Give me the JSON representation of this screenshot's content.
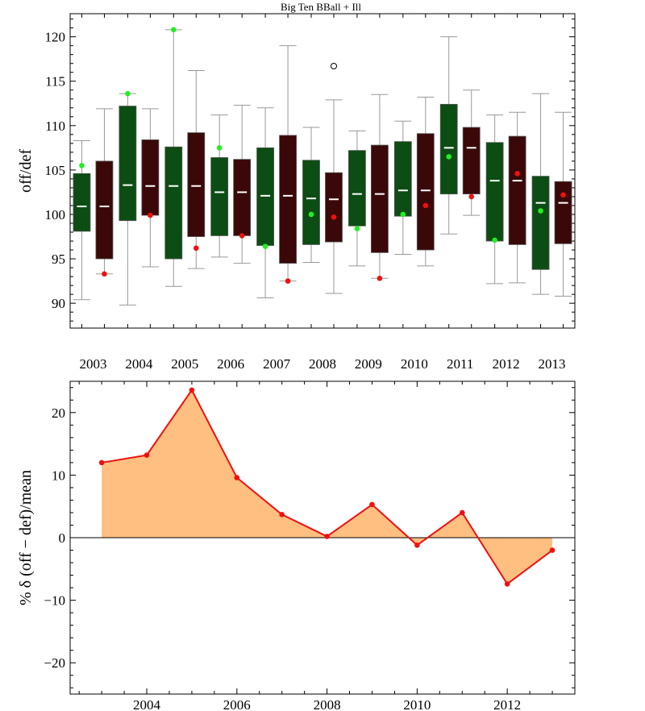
{
  "chart_data": [
    {
      "type": "box",
      "title": "Big Ten BBall + Ill",
      "ylabel": "off/def",
      "categories": [
        "2003",
        "2004",
        "2005",
        "2006",
        "2007",
        "2008",
        "2009",
        "2010",
        "2011",
        "2012",
        "2013"
      ],
      "ylim": [
        87.2,
        122.6
      ],
      "yticks": [
        90,
        95,
        100,
        105,
        110,
        115,
        120
      ],
      "series_colors": {
        "off": "#0b4d12",
        "def": "#3a0808",
        "off_point": "#22ee22",
        "def_point": "#ee1111",
        "whisker": "#999999",
        "median": "#ffffff"
      },
      "series": [
        {
          "name": "off",
          "boxes": [
            {
              "min": 90.4,
              "q1": 98.1,
              "median": 100.9,
              "q3": 104.6,
              "max": 108.3,
              "ill": 105.5
            },
            {
              "min": 89.8,
              "q1": 99.3,
              "median": 103.3,
              "q3": 112.2,
              "max": 113.6,
              "ill": 113.6
            },
            {
              "min": 91.9,
              "q1": 95.0,
              "median": 103.2,
              "q3": 107.6,
              "max": 120.8,
              "ill": 120.8
            },
            {
              "min": 95.2,
              "q1": 97.6,
              "median": 102.5,
              "q3": 106.4,
              "max": 111.2,
              "ill": 107.5
            },
            {
              "min": 90.6,
              "q1": 96.5,
              "median": 102.1,
              "q3": 107.5,
              "max": 112.0,
              "ill": 96.4
            },
            {
              "min": 94.6,
              "q1": 96.6,
              "median": 101.8,
              "q3": 106.1,
              "max": 109.8,
              "ill": 100.0
            },
            {
              "min": 94.2,
              "q1": 98.7,
              "median": 102.3,
              "q3": 107.2,
              "max": 109.4,
              "ill": 98.4
            },
            {
              "min": 95.5,
              "q1": 99.8,
              "median": 102.7,
              "q3": 108.2,
              "max": 110.5,
              "ill": 100.0
            },
            {
              "min": 97.8,
              "q1": 102.3,
              "median": 107.5,
              "q3": 112.4,
              "max": 120.0,
              "ill": 106.5
            },
            {
              "min": 92.2,
              "q1": 97.0,
              "median": 103.8,
              "q3": 108.1,
              "max": 111.2,
              "ill": 97.1
            },
            {
              "min": 91.0,
              "q1": 93.8,
              "median": 101.3,
              "q3": 104.3,
              "max": 113.6,
              "ill": 100.4
            }
          ]
        },
        {
          "name": "def",
          "boxes": [
            {
              "min": 93.3,
              "q1": 95.0,
              "median": 100.9,
              "q3": 106.0,
              "max": 111.9,
              "ill": 93.3
            },
            {
              "min": 94.1,
              "q1": 99.9,
              "median": 103.2,
              "q3": 108.4,
              "max": 111.9,
              "ill": 99.9
            },
            {
              "min": 93.9,
              "q1": 97.5,
              "median": 103.2,
              "q3": 109.2,
              "max": 116.2,
              "ill": 96.2
            },
            {
              "min": 94.5,
              "q1": 97.6,
              "median": 102.5,
              "q3": 106.2,
              "max": 112.3,
              "ill": 97.6
            },
            {
              "min": 92.5,
              "q1": 94.5,
              "median": 102.1,
              "q3": 108.9,
              "max": 119.0,
              "ill": 92.5
            },
            {
              "min": 91.1,
              "q1": 96.9,
              "median": 101.7,
              "q3": 104.7,
              "max": 112.9,
              "ill": 99.7,
              "outlier": 116.7
            },
            {
              "min": 92.8,
              "q1": 95.7,
              "median": 102.3,
              "q3": 107.8,
              "max": 113.5,
              "ill": 92.8
            },
            {
              "min": 94.2,
              "q1": 96.0,
              "median": 102.7,
              "q3": 109.1,
              "max": 113.2,
              "ill": 101.0
            },
            {
              "min": 99.9,
              "q1": 102.3,
              "median": 107.5,
              "q3": 109.8,
              "max": 114.0,
              "ill": 102.0
            },
            {
              "min": 92.3,
              "q1": 96.6,
              "median": 103.8,
              "q3": 108.8,
              "max": 111.5,
              "ill": 104.6
            },
            {
              "min": 90.8,
              "q1": 96.7,
              "median": 101.3,
              "q3": 103.7,
              "max": 111.5,
              "ill": 102.2
            }
          ]
        }
      ]
    },
    {
      "type": "area",
      "title": "",
      "xlabel": "",
      "ylabel": "% δ (off − def)/mean",
      "xlim": [
        2002.3,
        2013.5
      ],
      "ylim": [
        -25,
        25
      ],
      "xticks": [
        2004,
        2006,
        2008,
        2010,
        2012
      ],
      "yticks": [
        -20,
        -10,
        0,
        10,
        20
      ],
      "line_color": "#ee1111",
      "fill_color": "#ffbf80",
      "x": [
        2003,
        2004,
        2005,
        2006,
        2007,
        2008,
        2009,
        2010,
        2011,
        2012,
        2013
      ],
      "values": [
        12.0,
        13.2,
        23.6,
        9.6,
        3.7,
        0.2,
        5.3,
        -1.2,
        4.0,
        -7.4,
        -2.0
      ]
    }
  ]
}
